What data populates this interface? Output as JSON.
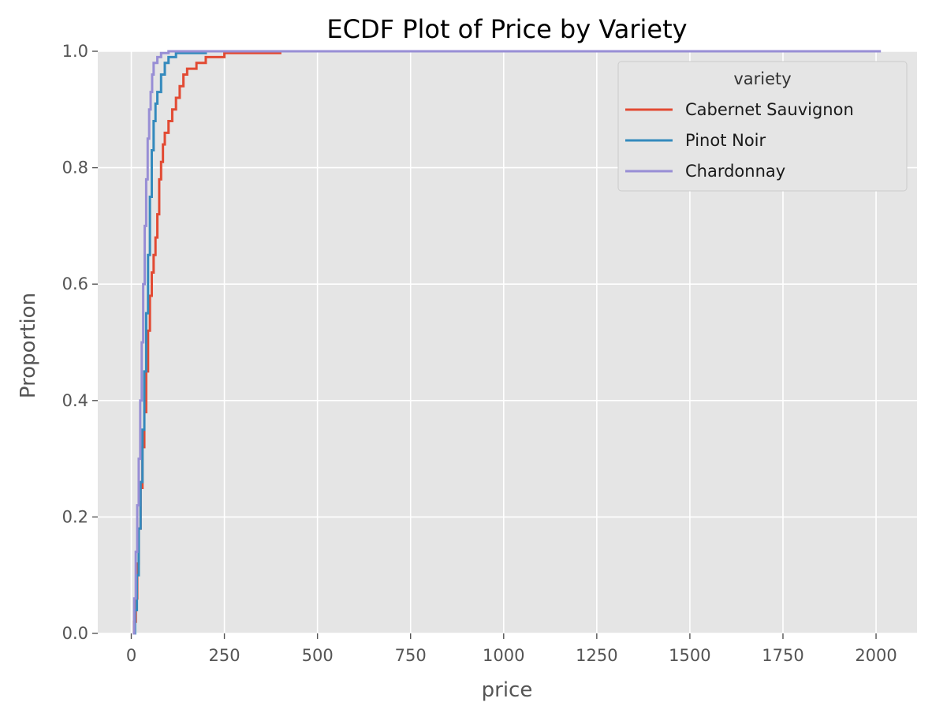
{
  "chart_data": {
    "type": "line",
    "subtype": "ecdf",
    "title": "ECDF Plot of Price by Variety",
    "xlabel": "price",
    "ylabel": "Proportion",
    "xlim": [
      -90,
      2110
    ],
    "ylim": [
      0,
      1
    ],
    "xticks": [
      0,
      250,
      500,
      750,
      1000,
      1250,
      1500,
      1750,
      2000
    ],
    "yticks": [
      0.0,
      0.2,
      0.4,
      0.6,
      0.8,
      1.0
    ],
    "xtick_labels": [
      "0",
      "250",
      "500",
      "750",
      "1000",
      "1250",
      "1500",
      "1750",
      "2000"
    ],
    "ytick_labels": [
      "0.0",
      "0.2",
      "0.4",
      "0.6",
      "0.8",
      "1.0"
    ],
    "grid": true,
    "style": "ggplot",
    "legend": {
      "title": "variety",
      "position": "top-right"
    },
    "colors": {
      "background": "#e5e5e5",
      "grid": "#ffffff"
    },
    "series": [
      {
        "name": "Cabernet Sauvignon",
        "color": "#e24a33",
        "points": [
          [
            5,
            0
          ],
          [
            8,
            0.02
          ],
          [
            12,
            0.06
          ],
          [
            16,
            0.12
          ],
          [
            20,
            0.18
          ],
          [
            25,
            0.25
          ],
          [
            30,
            0.32
          ],
          [
            35,
            0.38
          ],
          [
            40,
            0.45
          ],
          [
            45,
            0.52
          ],
          [
            50,
            0.58
          ],
          [
            55,
            0.62
          ],
          [
            60,
            0.65
          ],
          [
            65,
            0.68
          ],
          [
            70,
            0.72
          ],
          [
            75,
            0.78
          ],
          [
            80,
            0.81
          ],
          [
            85,
            0.84
          ],
          [
            90,
            0.86
          ],
          [
            100,
            0.88
          ],
          [
            110,
            0.9
          ],
          [
            120,
            0.92
          ],
          [
            130,
            0.94
          ],
          [
            140,
            0.96
          ],
          [
            150,
            0.97
          ],
          [
            175,
            0.98
          ],
          [
            200,
            0.99
          ],
          [
            250,
            0.997
          ],
          [
            400,
            1.0
          ],
          [
            630,
            1.0
          ]
        ]
      },
      {
        "name": "Pinot Noir",
        "color": "#348abd",
        "points": [
          [
            5,
            0
          ],
          [
            10,
            0.04
          ],
          [
            15,
            0.1
          ],
          [
            20,
            0.18
          ],
          [
            25,
            0.26
          ],
          [
            30,
            0.35
          ],
          [
            35,
            0.45
          ],
          [
            40,
            0.55
          ],
          [
            45,
            0.65
          ],
          [
            50,
            0.75
          ],
          [
            55,
            0.83
          ],
          [
            60,
            0.88
          ],
          [
            65,
            0.91
          ],
          [
            70,
            0.93
          ],
          [
            80,
            0.96
          ],
          [
            90,
            0.98
          ],
          [
            100,
            0.99
          ],
          [
            120,
            0.997
          ],
          [
            200,
            1.0
          ]
        ]
      },
      {
        "name": "Chardonnay",
        "color": "#988ed5",
        "points": [
          [
            4,
            0
          ],
          [
            8,
            0.06
          ],
          [
            12,
            0.14
          ],
          [
            16,
            0.22
          ],
          [
            20,
            0.3
          ],
          [
            24,
            0.4
          ],
          [
            28,
            0.5
          ],
          [
            32,
            0.6
          ],
          [
            36,
            0.7
          ],
          [
            40,
            0.78
          ],
          [
            44,
            0.85
          ],
          [
            48,
            0.9
          ],
          [
            52,
            0.93
          ],
          [
            56,
            0.96
          ],
          [
            60,
            0.98
          ],
          [
            70,
            0.99
          ],
          [
            80,
            0.997
          ],
          [
            100,
            1.0
          ],
          [
            2013,
            1.0
          ]
        ]
      }
    ]
  }
}
